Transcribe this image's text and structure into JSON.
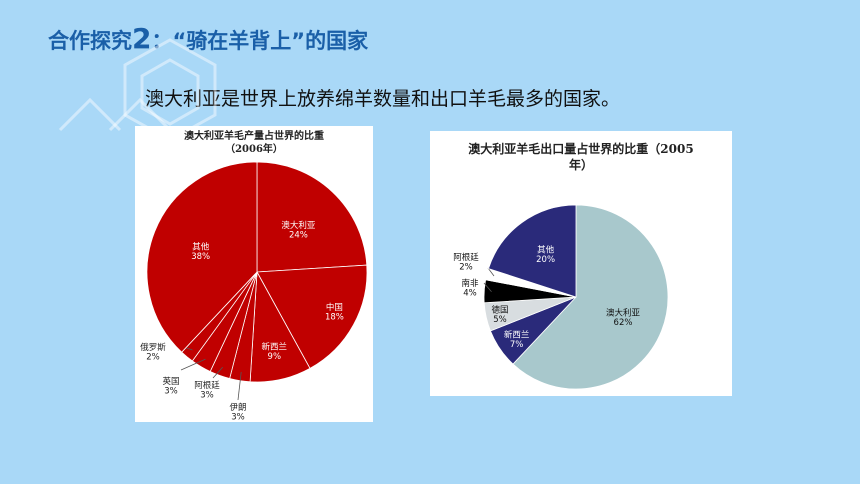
{
  "heading": {
    "prefix": "合作探究",
    "number": "2",
    "suffix": "：“骑在羊背上”的国家"
  },
  "subtitle": "澳大利亚是世界上放养绵羊数量和出口羊毛最多的国家。",
  "chart_data": [
    {
      "type": "pie",
      "title": "澳大利亚羊毛产量占世界的比重",
      "subtitle": "（2006年）",
      "categories": [
        "澳大利亚",
        "中国",
        "新西兰",
        "伊朗",
        "阿根廷",
        "英国",
        "俄罗斯",
        "其他"
      ],
      "values": [
        24,
        18,
        9,
        3,
        3,
        3,
        2,
        38
      ],
      "labels": [
        "24%",
        "18%",
        "9%",
        "3%",
        "3%",
        "3%",
        "2%",
        "38%"
      ],
      "colors": [
        "#c00000",
        "#c00000",
        "#c00000",
        "#c00000",
        "#c00000",
        "#c00000",
        "#c00000",
        "#c00000"
      ],
      "legend": "none"
    },
    {
      "type": "pie",
      "title": "澳大利亚羊毛出口量占世界的比重（2005",
      "subtitle": "年）",
      "categories": [
        "澳大利亚",
        "新西兰",
        "德国",
        "南非",
        "阿根廷",
        "其他"
      ],
      "values": [
        62,
        7,
        5,
        4,
        2,
        20
      ],
      "labels": [
        "62%",
        "7%",
        "5%",
        "4%",
        "2%",
        "20%"
      ],
      "colors": [
        "#a8c8cc",
        "#2a2a7a",
        "#d8dde0",
        "#000000",
        "#ffffff",
        "#2a2a7a"
      ],
      "legend": "none"
    }
  ]
}
